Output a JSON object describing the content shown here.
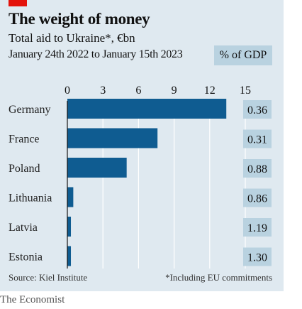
{
  "header": {
    "title": "The weight of money",
    "subtitle": "Total aid to Ukraine*, €bn",
    "date_range": "January 24th 2022 to January 15th 2023",
    "gdp_column_label": "% of GDP"
  },
  "footer": {
    "source": "Source: Kiel Institute",
    "footnote": "*Including EU commitments",
    "brand": "The Economist"
  },
  "colors": {
    "bar": "#0f5c91",
    "panel_background": "#dfe9f0",
    "gdp_cell": "#b9d2e0",
    "accent": "#e3120b",
    "grid": "#ffffff"
  },
  "chart_data": {
    "type": "bar",
    "orientation": "horizontal",
    "categories": [
      "Germany",
      "France",
      "Poland",
      "Lithuania",
      "Latvia",
      "Estonia"
    ],
    "values": [
      13.4,
      7.6,
      5.0,
      0.5,
      0.3,
      0.3
    ],
    "gdp_percent_labels": [
      "0.36",
      "0.31",
      "0.88",
      "0.86",
      "1.19",
      "1.30"
    ],
    "xticks": [
      0,
      3,
      6,
      9,
      12,
      15
    ],
    "tick_labels": [
      "0",
      "3",
      "6",
      "9",
      "12",
      "15"
    ],
    "xlim": [
      0,
      15
    ],
    "grid": true,
    "axis_position": "top"
  }
}
